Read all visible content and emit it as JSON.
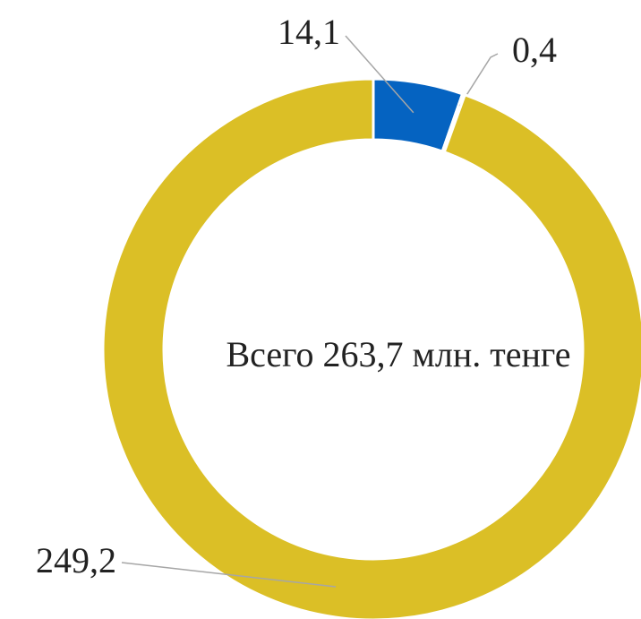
{
  "chart_data": {
    "type": "donut",
    "annotation": "Всего 263,7 млн. тенге",
    "categories": [
      null,
      null,
      null
    ],
    "values": [
      14.1,
      0.4,
      249.2
    ],
    "value_labels": [
      "14,1",
      "0,4",
      "249,2"
    ],
    "colors": [
      "#0563c1",
      "#c9d3e0",
      "#dbbf26"
    ]
  }
}
